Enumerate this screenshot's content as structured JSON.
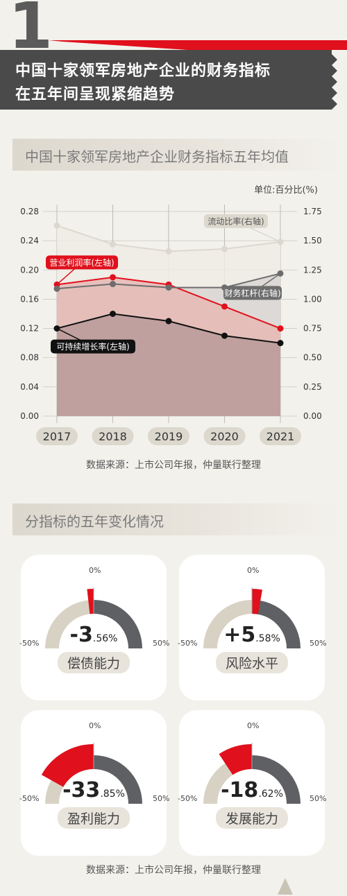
{
  "header": {
    "number": "1",
    "title_line1": "中国十家领军房地产企业的财务指标",
    "title_line2": "在五年间呈现紧缩趋势"
  },
  "chart_section": {
    "title": "中国十家领军房地产企业财务指标五年均值",
    "unit_label": "单位:百分比(%)",
    "source": "数据来源：上市公司年报，仲量联行整理"
  },
  "chart_data": {
    "type": "line",
    "x": [
      "2017",
      "2018",
      "2019",
      "2020",
      "2021"
    ],
    "left_ylim": [
      0,
      0.28
    ],
    "left_ticks": [
      "0.00",
      "0.04",
      "0.08",
      "0.12",
      "0.16",
      "0.20",
      "0.24",
      "0.28"
    ],
    "right_ylim": [
      0,
      1.75
    ],
    "right_ticks": [
      "0.00",
      "0.25",
      "0.50",
      "0.75",
      "1.00",
      "1.25",
      "1.50",
      "1.75"
    ],
    "series": [
      {
        "name": "流动比率(右轴)",
        "axis": "right",
        "values": [
          1.63,
          1.47,
          1.41,
          1.43,
          1.49
        ],
        "color": "#dcd8ce"
      },
      {
        "name": "营业利润率(左轴)",
        "axis": "left",
        "values": [
          0.18,
          0.19,
          0.18,
          0.15,
          0.12
        ],
        "color": "#e0101c"
      },
      {
        "name": "财务杠杆(右轴)",
        "axis": "right",
        "values": [
          1.09,
          1.13,
          1.1,
          1.1,
          1.22
        ],
        "color": "#6d6d6d"
      },
      {
        "name": "可持续增长率(左轴)",
        "axis": "left",
        "values": [
          0.12,
          0.14,
          0.13,
          0.11,
          0.1
        ],
        "color": "#111111"
      }
    ],
    "grid": true
  },
  "gauges_section": {
    "title": "分指标的五年变化情况",
    "source": "数据来源：上市公司年报，仲量联行整理"
  },
  "gauges": [
    {
      "label": "偿债能力",
      "big": "-3",
      "small": ".56%",
      "value": -3.56,
      "zero": "0%",
      "left": "-50%",
      "right": "50%"
    },
    {
      "label": "风险水平",
      "big": "+5",
      "small": ".58%",
      "value": 5.58,
      "zero": "0%",
      "left": "-50%",
      "right": "50%"
    },
    {
      "label": "盈利能力",
      "big": "-33",
      "small": ".85%",
      "value": -33.85,
      "zero": "0%",
      "left": "-50%",
      "right": "50%"
    },
    {
      "label": "发展能力",
      "big": "-18",
      "small": ".62%",
      "value": -18.62,
      "zero": "0%",
      "left": "-50%",
      "right": "50%"
    }
  ],
  "colors": {
    "red": "#e0101c",
    "dark": "#5f6064",
    "beige": "#d8d2c4",
    "accent_gray": "#6d6d6d"
  }
}
